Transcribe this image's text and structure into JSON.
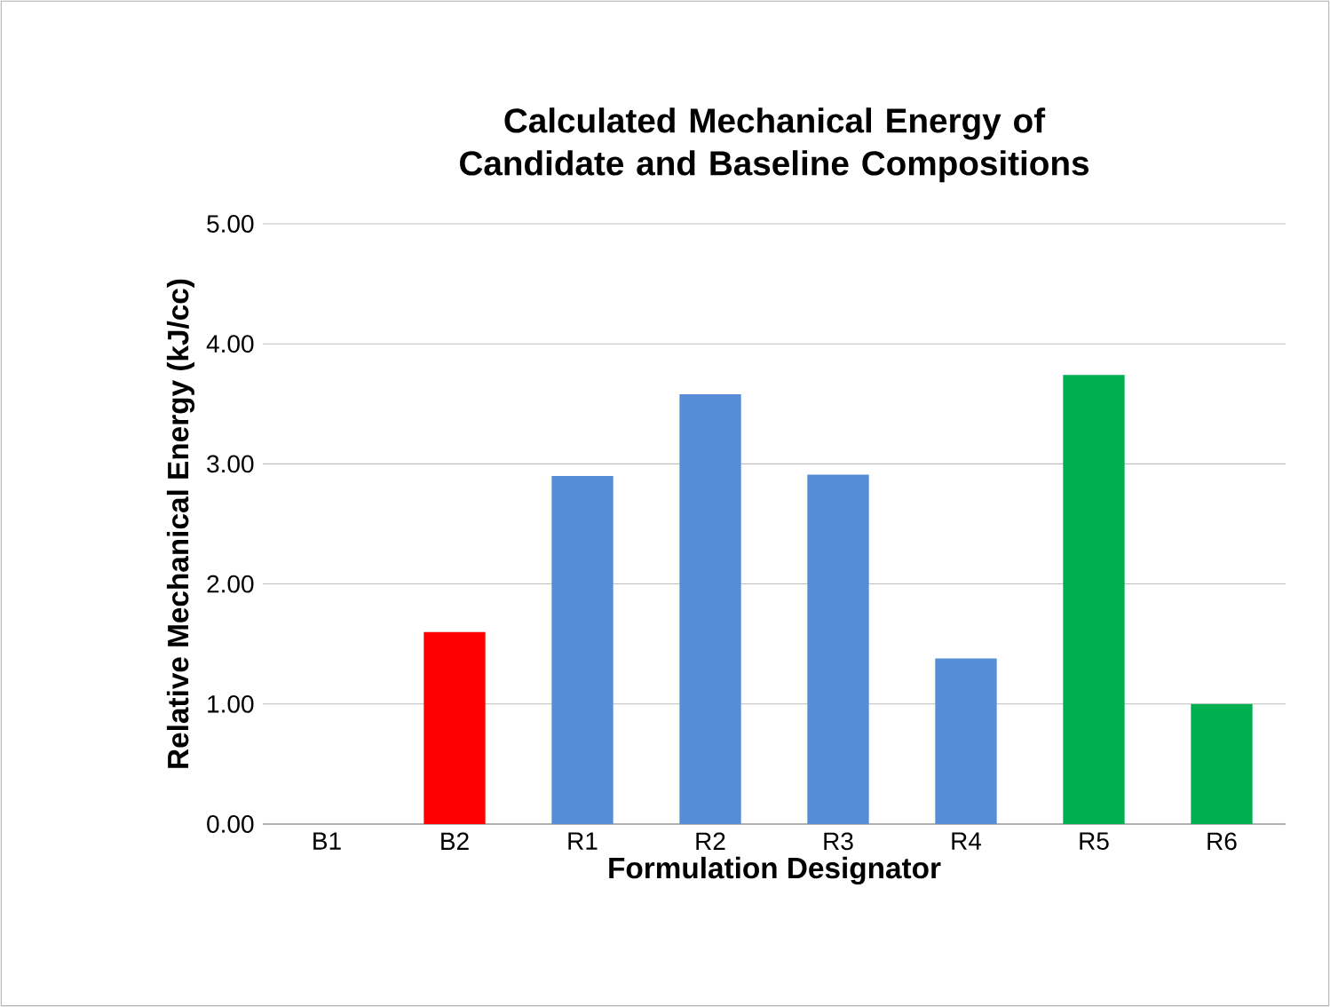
{
  "chart_data": {
    "type": "bar",
    "title": "Calculated Mechanical Energy of Candidate and Baseline Compositions",
    "xlabel": "Formulation Designator",
    "ylabel": "Relative Mechanical Energy (kJ/cc)",
    "categories": [
      "B1",
      "B2",
      "R1",
      "R2",
      "R3",
      "R4",
      "R5",
      "R6"
    ],
    "values": [
      0,
      1.6,
      2.9,
      3.58,
      2.91,
      1.38,
      3.74,
      1.0
    ],
    "colors": [
      "#558ed5",
      "#ff0000",
      "#558ed5",
      "#558ed5",
      "#558ed5",
      "#558ed5",
      "#00b050",
      "#00b050"
    ],
    "ylim": [
      0,
      5
    ],
    "yticks": [
      {
        "value": 0,
        "label": "0.00"
      },
      {
        "value": 1,
        "label": "1.00"
      },
      {
        "value": 2,
        "label": "2.00"
      },
      {
        "value": 3,
        "label": "3.00"
      },
      {
        "value": 4,
        "label": "4.00"
      },
      {
        "value": 5,
        "label": "5.00"
      }
    ],
    "grid": "y"
  }
}
